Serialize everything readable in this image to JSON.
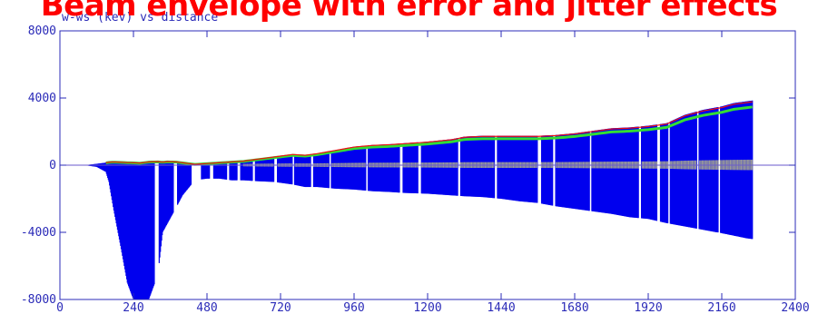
{
  "slide": {
    "title": "Beam envelope with error and jitter effects"
  },
  "chart_data": {
    "type": "bar",
    "title": "w-ws (kev) vs distance",
    "xlabel": "",
    "ylabel": "",
    "xlim": [
      0,
      2400
    ],
    "ylim": [
      -8000,
      8000
    ],
    "x_ticks": [
      0,
      240,
      480,
      720,
      960,
      1200,
      1440,
      1680,
      1920,
      2160,
      2400
    ],
    "y_ticks": [
      8000,
      4000,
      0,
      -4000,
      -8000
    ],
    "grid": false,
    "colors": {
      "axis": "#2b2bb8",
      "envelope": "#0000ee",
      "core": "#999999",
      "error_band": "#33dd33",
      "red_band": "#ee1111",
      "zero_line": "#6a5acd"
    },
    "envelope": {
      "x": [
        80,
        120,
        150,
        160,
        175,
        200,
        220,
        240,
        260,
        290,
        320,
        335,
        350,
        380,
        400,
        440,
        480,
        520,
        560,
        600,
        640,
        700,
        760,
        800,
        840,
        900,
        960,
        1020,
        1080,
        1120,
        1200,
        1280,
        1320,
        1380,
        1440,
        1500,
        1560,
        1620,
        1680,
        1740,
        1800,
        1860,
        1920,
        1980,
        2040,
        2100,
        2160,
        2200,
        2240,
        2260
      ],
      "max": [
        0,
        80,
        150,
        180,
        200,
        180,
        160,
        150,
        130,
        200,
        220,
        180,
        220,
        200,
        150,
        50,
        100,
        150,
        200,
        250,
        350,
        500,
        650,
        600,
        700,
        900,
        1100,
        1200,
        1250,
        1300,
        1400,
        1550,
        1700,
        1750,
        1750,
        1750,
        1750,
        1800,
        1900,
        2050,
        2200,
        2250,
        2350,
        2500,
        3000,
        3300,
        3500,
        3700,
        3800,
        3850
      ],
      "min": [
        0,
        -100,
        -400,
        -1000,
        -2600,
        -5000,
        -7000,
        -8000,
        -8000,
        -8000,
        -6500,
        -4000,
        -3500,
        -2500,
        -1800,
        -900,
        -800,
        -800,
        -900,
        -900,
        -950,
        -1000,
        -1150,
        -1300,
        -1300,
        -1400,
        -1450,
        -1550,
        -1600,
        -1650,
        -1700,
        -1800,
        -1850,
        -1900,
        -2000,
        -2150,
        -2250,
        -2450,
        -2600,
        -2750,
        -2900,
        -3100,
        -3200,
        -3450,
        -3650,
        -3850,
        -4050,
        -4200,
        -4350,
        -4400
      ]
    },
    "gaps": [
      [
        310,
        322
      ],
      [
        372,
        382
      ],
      [
        430,
        460
      ],
      [
        490,
        500
      ],
      [
        545,
        552
      ],
      [
        580,
        588
      ],
      [
        630,
        636
      ],
      [
        700,
        708
      ],
      [
        760,
        764
      ],
      [
        820,
        826
      ],
      [
        880,
        884
      ],
      [
        1000,
        1004
      ],
      [
        1110,
        1118
      ],
      [
        1170,
        1178
      ],
      [
        1300,
        1306
      ],
      [
        1420,
        1426
      ],
      [
        1560,
        1570
      ],
      [
        1610,
        1616
      ],
      [
        1730,
        1734
      ],
      [
        1890,
        1896
      ],
      [
        1950,
        1958
      ],
      [
        1985,
        1990
      ],
      [
        2080,
        2084
      ],
      [
        2150,
        2154
      ]
    ]
  }
}
